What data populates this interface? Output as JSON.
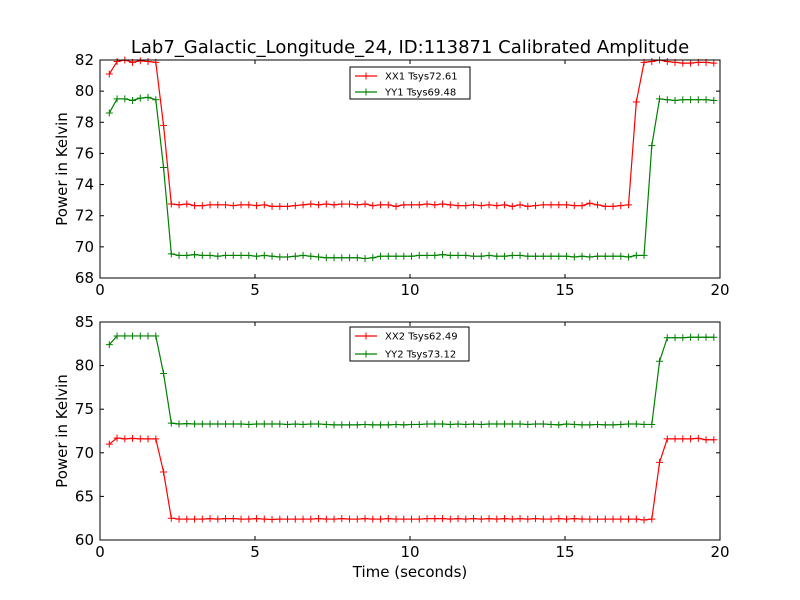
{
  "title": "Lab7_Galactic_Longitude_24, ID:113871 Calibrated Amplitude",
  "xlabel": "Time (seconds)",
  "chart_data": [
    {
      "type": "line",
      "title": "Lab7_Galactic_Longitude_24, ID:113871 Calibrated Amplitude",
      "xlabel": "",
      "ylabel": "Power in Kelvin",
      "xlim": [
        0,
        20
      ],
      "ylim": [
        68,
        82
      ],
      "x_ticks": [
        0,
        5,
        10,
        15,
        20
      ],
      "y_ticks": [
        68,
        70,
        72,
        74,
        76,
        78,
        80,
        82
      ],
      "grid": false,
      "legend_position": "top-center",
      "series": [
        {
          "name": "XX1 Tsys72.61",
          "color": "#ff0000",
          "marker": "+",
          "x": [
            0.3,
            0.55,
            0.8,
            1.05,
            1.3,
            1.55,
            1.8,
            2.05,
            2.3,
            2.55,
            2.8,
            3.05,
            3.3,
            3.55,
            3.8,
            4.05,
            4.3,
            4.55,
            4.8,
            5.05,
            5.3,
            5.55,
            5.8,
            6.05,
            6.3,
            6.55,
            6.8,
            7.05,
            7.3,
            7.55,
            7.8,
            8.05,
            8.3,
            8.55,
            8.8,
            9.05,
            9.3,
            9.55,
            9.8,
            10.05,
            10.3,
            10.55,
            10.8,
            11.05,
            11.3,
            11.55,
            11.8,
            12.05,
            12.3,
            12.55,
            12.8,
            13.05,
            13.3,
            13.55,
            13.8,
            14.05,
            14.3,
            14.55,
            14.8,
            15.05,
            15.3,
            15.55,
            15.8,
            16.05,
            16.3,
            16.55,
            16.8,
            17.05,
            17.3,
            17.55,
            17.8,
            18.05,
            18.3,
            18.55,
            18.8,
            19.05,
            19.3,
            19.55,
            19.8
          ],
          "y": [
            81.1,
            81.9,
            82.0,
            81.85,
            81.95,
            81.9,
            81.85,
            77.8,
            72.75,
            72.7,
            72.75,
            72.65,
            72.65,
            72.7,
            72.7,
            72.7,
            72.65,
            72.7,
            72.7,
            72.65,
            72.7,
            72.6,
            72.6,
            72.6,
            72.65,
            72.7,
            72.75,
            72.7,
            72.75,
            72.7,
            72.75,
            72.75,
            72.7,
            72.75,
            72.65,
            72.7,
            72.7,
            72.6,
            72.7,
            72.7,
            72.7,
            72.75,
            72.7,
            72.75,
            72.7,
            72.65,
            72.65,
            72.7,
            72.65,
            72.7,
            72.65,
            72.7,
            72.6,
            72.7,
            72.6,
            72.65,
            72.7,
            72.7,
            72.7,
            72.7,
            72.65,
            72.65,
            72.8,
            72.7,
            72.6,
            72.6,
            72.65,
            72.7,
            79.3,
            81.85,
            81.9,
            82.0,
            81.9,
            81.85,
            81.8,
            81.8,
            81.85,
            81.85,
            81.8
          ]
        },
        {
          "name": "YY1 Tsys69.48",
          "color": "#008000",
          "marker": "+",
          "x": [
            0.3,
            0.55,
            0.8,
            1.05,
            1.3,
            1.55,
            1.8,
            2.05,
            2.3,
            2.55,
            2.8,
            3.05,
            3.3,
            3.55,
            3.8,
            4.05,
            4.3,
            4.55,
            4.8,
            5.05,
            5.3,
            5.55,
            5.8,
            6.05,
            6.3,
            6.55,
            6.8,
            7.05,
            7.3,
            7.55,
            7.8,
            8.05,
            8.3,
            8.55,
            8.8,
            9.05,
            9.3,
            9.55,
            9.8,
            10.05,
            10.3,
            10.55,
            10.8,
            11.05,
            11.3,
            11.55,
            11.8,
            12.05,
            12.3,
            12.55,
            12.8,
            13.05,
            13.3,
            13.55,
            13.8,
            14.05,
            14.3,
            14.55,
            14.8,
            15.05,
            15.3,
            15.55,
            15.8,
            16.05,
            16.3,
            16.55,
            16.8,
            17.05,
            17.3,
            17.55,
            17.8,
            18.05,
            18.3,
            18.55,
            18.8,
            19.05,
            19.3,
            19.55,
            19.8
          ],
          "y": [
            78.6,
            79.5,
            79.5,
            79.4,
            79.55,
            79.6,
            79.45,
            75.1,
            69.55,
            69.45,
            69.45,
            69.5,
            69.45,
            69.45,
            69.4,
            69.45,
            69.45,
            69.45,
            69.45,
            69.4,
            69.45,
            69.4,
            69.35,
            69.35,
            69.4,
            69.45,
            69.4,
            69.35,
            69.3,
            69.3,
            69.3,
            69.3,
            69.3,
            69.25,
            69.3,
            69.4,
            69.4,
            69.4,
            69.4,
            69.4,
            69.45,
            69.45,
            69.45,
            69.5,
            69.45,
            69.45,
            69.45,
            69.4,
            69.4,
            69.45,
            69.4,
            69.4,
            69.45,
            69.45,
            69.4,
            69.4,
            69.4,
            69.4,
            69.4,
            69.4,
            69.35,
            69.4,
            69.35,
            69.4,
            69.4,
            69.4,
            69.4,
            69.35,
            69.45,
            69.45,
            76.5,
            79.5,
            79.45,
            79.4,
            79.45,
            79.45,
            79.45,
            79.45,
            79.4
          ]
        }
      ]
    },
    {
      "type": "line",
      "title": "",
      "xlabel": "Time (seconds)",
      "ylabel": "Power in Kelvin",
      "xlim": [
        0,
        20
      ],
      "ylim": [
        60,
        85
      ],
      "x_ticks": [
        0,
        5,
        10,
        15,
        20
      ],
      "y_ticks": [
        60,
        65,
        70,
        75,
        80,
        85
      ],
      "grid": false,
      "legend_position": "top-center",
      "series": [
        {
          "name": "XX2 Tsys62.49",
          "color": "#ff0000",
          "marker": "+",
          "x": [
            0.3,
            0.55,
            0.8,
            1.05,
            1.3,
            1.55,
            1.8,
            2.05,
            2.3,
            2.55,
            2.8,
            3.05,
            3.3,
            3.55,
            3.8,
            4.05,
            4.3,
            4.55,
            4.8,
            5.05,
            5.3,
            5.55,
            5.8,
            6.05,
            6.3,
            6.55,
            6.8,
            7.05,
            7.3,
            7.55,
            7.8,
            8.05,
            8.3,
            8.55,
            8.8,
            9.05,
            9.3,
            9.55,
            9.8,
            10.05,
            10.3,
            10.55,
            10.8,
            11.05,
            11.3,
            11.55,
            11.8,
            12.05,
            12.3,
            12.55,
            12.8,
            13.05,
            13.3,
            13.55,
            13.8,
            14.05,
            14.3,
            14.55,
            14.8,
            15.05,
            15.3,
            15.55,
            15.8,
            16.05,
            16.3,
            16.55,
            16.8,
            17.05,
            17.3,
            17.55,
            17.8,
            18.05,
            18.3,
            18.55,
            18.8,
            19.05,
            19.3,
            19.55,
            19.8
          ],
          "y": [
            71.0,
            71.7,
            71.6,
            71.65,
            71.6,
            71.6,
            71.6,
            67.8,
            62.5,
            62.4,
            62.4,
            62.4,
            62.4,
            62.45,
            62.4,
            62.45,
            62.45,
            62.4,
            62.4,
            62.45,
            62.4,
            62.35,
            62.4,
            62.4,
            62.4,
            62.4,
            62.4,
            62.45,
            62.4,
            62.4,
            62.45,
            62.4,
            62.4,
            62.45,
            62.4,
            62.4,
            62.45,
            62.4,
            62.4,
            62.4,
            62.4,
            62.45,
            62.45,
            62.45,
            62.4,
            62.45,
            62.4,
            62.45,
            62.4,
            62.45,
            62.4,
            62.45,
            62.4,
            62.45,
            62.4,
            62.45,
            62.4,
            62.4,
            62.45,
            62.4,
            62.45,
            62.4,
            62.4,
            62.4,
            62.4,
            62.4,
            62.4,
            62.4,
            62.4,
            62.3,
            62.4,
            68.9,
            71.6,
            71.6,
            71.6,
            71.6,
            71.65,
            71.5,
            71.5
          ]
        },
        {
          "name": "YY2 Tsys73.12",
          "color": "#008000",
          "marker": "+",
          "x": [
            0.3,
            0.55,
            0.8,
            1.05,
            1.3,
            1.55,
            1.8,
            2.05,
            2.3,
            2.55,
            2.8,
            3.05,
            3.3,
            3.55,
            3.8,
            4.05,
            4.3,
            4.55,
            4.8,
            5.05,
            5.3,
            5.55,
            5.8,
            6.05,
            6.3,
            6.55,
            6.8,
            7.05,
            7.3,
            7.55,
            7.8,
            8.05,
            8.3,
            8.55,
            8.8,
            9.05,
            9.3,
            9.55,
            9.8,
            10.05,
            10.3,
            10.55,
            10.8,
            11.05,
            11.3,
            11.55,
            11.8,
            12.05,
            12.3,
            12.55,
            12.8,
            13.05,
            13.3,
            13.55,
            13.8,
            14.05,
            14.3,
            14.55,
            14.8,
            15.05,
            15.3,
            15.55,
            15.8,
            16.05,
            16.3,
            16.55,
            16.8,
            17.05,
            17.3,
            17.55,
            17.8,
            18.05,
            18.3,
            18.55,
            18.8,
            19.05,
            19.3,
            19.55,
            19.8
          ],
          "y": [
            82.4,
            83.4,
            83.4,
            83.4,
            83.4,
            83.4,
            83.4,
            79.1,
            73.4,
            73.3,
            73.35,
            73.3,
            73.3,
            73.3,
            73.3,
            73.3,
            73.3,
            73.3,
            73.25,
            73.3,
            73.3,
            73.3,
            73.3,
            73.25,
            73.3,
            73.25,
            73.3,
            73.3,
            73.25,
            73.2,
            73.2,
            73.2,
            73.2,
            73.25,
            73.2,
            73.2,
            73.2,
            73.25,
            73.2,
            73.25,
            73.25,
            73.3,
            73.3,
            73.3,
            73.25,
            73.3,
            73.25,
            73.3,
            73.25,
            73.3,
            73.3,
            73.3,
            73.3,
            73.3,
            73.25,
            73.3,
            73.3,
            73.25,
            73.2,
            73.3,
            73.25,
            73.2,
            73.2,
            73.25,
            73.2,
            73.2,
            73.25,
            73.3,
            73.3,
            73.25,
            73.25,
            80.5,
            83.2,
            83.2,
            83.2,
            83.25,
            83.25,
            83.25,
            83.25
          ]
        }
      ]
    }
  ]
}
